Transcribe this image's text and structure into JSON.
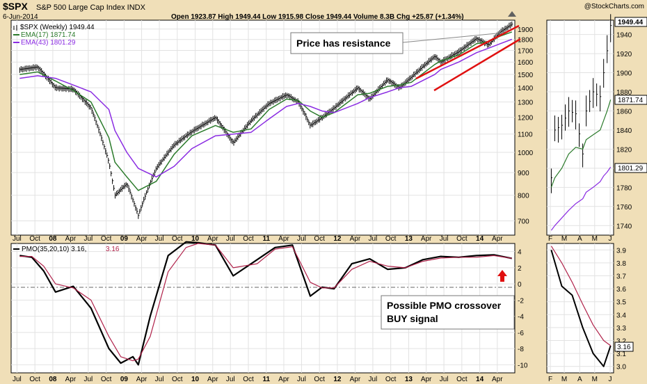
{
  "header": {
    "symbol": "$SPX",
    "name": "S&P 500 Large Cap Index INDX",
    "date": "6-Jun-2014",
    "brand": "@StockCharts.com",
    "ohlc": "Open 1923.87   High 1949.44   Low 1915.98   Close 1949.44   Volume 8.3B   Chg +25.87 (+1.34%)"
  },
  "legend": {
    "price": "$SPX (Weekly) 1949.44",
    "ema17": "EMA(17) 1871.74",
    "ema43": "EMA(43) 1801.29",
    "pmo_label": "PMO(35,20,10) 3.16,",
    "pmo_value": "3.16"
  },
  "annotations": {
    "resistance": "Price has resistance",
    "pmo_line1": "Possible PMO crossover",
    "pmo_line2": "BUY signal"
  },
  "colors": {
    "background": "#f0dfb8",
    "panel": "#ffffff",
    "price": "#000000",
    "ema17": "#2a7a2a",
    "ema43": "#8a2be2",
    "pmo": "#000000",
    "pmo_signal": "#b0224a",
    "trendline": "#e01010",
    "arrow": "#e01010"
  },
  "chart_data": [
    {
      "type": "line",
      "panel": "main-price",
      "scale": "log",
      "ylim": [
        650,
        1990
      ],
      "y_ticks": [
        700,
        800,
        900,
        1000,
        1100,
        1200,
        1300,
        1400,
        1500,
        1600,
        1700,
        1800,
        1900
      ],
      "x_ticks": [
        "Jul",
        "Oct",
        "08",
        "Apr",
        "Jul",
        "Oct",
        "09",
        "Apr",
        "Jul",
        "Oct",
        "10",
        "Apr",
        "Jul",
        "Oct",
        "11",
        "Apr",
        "Jul",
        "Oct",
        "12",
        "Apr",
        "Jul",
        "Oct",
        "13",
        "Apr",
        "Jul",
        "Oct",
        "14",
        "Apr"
      ],
      "x": [
        "2007-07",
        "2007-10",
        "2008-01",
        "2008-04",
        "2008-07",
        "2008-10",
        "2008-11",
        "2009-01",
        "2009-03",
        "2009-06",
        "2009-09",
        "2009-12",
        "2010-04",
        "2010-07",
        "2010-10",
        "2011-01",
        "2011-04",
        "2011-06",
        "2011-08",
        "2011-10",
        "2011-12",
        "2012-04",
        "2012-06",
        "2012-09",
        "2012-11",
        "2013-01",
        "2013-05",
        "2013-06",
        "2013-09",
        "2013-12",
        "2014-02",
        "2014-04",
        "2014-06"
      ],
      "series": [
        {
          "name": "$SPX (Weekly)",
          "values": [
            1540,
            1560,
            1400,
            1390,
            1260,
            950,
            800,
            850,
            720,
            920,
            1040,
            1115,
            1200,
            1050,
            1180,
            1290,
            1350,
            1300,
            1150,
            1200,
            1260,
            1400,
            1320,
            1460,
            1400,
            1480,
            1650,
            1600,
            1690,
            1810,
            1750,
            1870,
            1949.44
          ]
        },
        {
          "name": "EMA(17)",
          "values": [
            1500,
            1520,
            1450,
            1380,
            1300,
            1080,
            950,
            880,
            820,
            860,
            990,
            1090,
            1150,
            1110,
            1130,
            1250,
            1320,
            1310,
            1240,
            1200,
            1230,
            1350,
            1360,
            1410,
            1420,
            1440,
            1580,
            1610,
            1660,
            1760,
            1780,
            1830,
            1871.74
          ]
        },
        {
          "name": "EMA(43)",
          "values": [
            1470,
            1490,
            1470,
            1420,
            1370,
            1250,
            1120,
            1000,
            920,
            880,
            930,
            1020,
            1090,
            1100,
            1110,
            1190,
            1270,
            1290,
            1270,
            1240,
            1230,
            1290,
            1330,
            1370,
            1400,
            1410,
            1500,
            1540,
            1600,
            1680,
            1720,
            1760,
            1801.29
          ]
        }
      ],
      "annotation": "Price has resistance"
    },
    {
      "type": "line",
      "panel": "zoom-price",
      "ylim": [
        1730,
        1955
      ],
      "y_ticks": [
        1740,
        1760,
        1780,
        1800,
        1820,
        1840,
        1860,
        1880,
        1900,
        1920,
        1940
      ],
      "x_ticks": [
        "F",
        "M",
        "A",
        "M",
        "J"
      ],
      "x": [
        "2014-02-03",
        "2014-02-10",
        "2014-02-24",
        "2014-03-10",
        "2014-03-24",
        "2014-04-07",
        "2014-04-14",
        "2014-04-28",
        "2014-05-12",
        "2014-05-19",
        "2014-05-26",
        "2014-06-02"
      ],
      "series": [
        {
          "name": "$SPX (Weekly)",
          "values": [
            1790,
            1840,
            1845,
            1860,
            1857,
            1815,
            1860,
            1880,
            1875,
            1900,
            1923,
            1949.44
          ]
        },
        {
          "name": "EMA(17)",
          "values": [
            1780,
            1790,
            1800,
            1815,
            1822,
            1820,
            1830,
            1835,
            1840,
            1850,
            1860,
            1871.74
          ]
        },
        {
          "name": "EMA(43)",
          "values": [
            1735,
            1740,
            1748,
            1756,
            1763,
            1768,
            1775,
            1780,
            1786,
            1792,
            1796,
            1801.29
          ]
        }
      ]
    },
    {
      "type": "line",
      "panel": "pmo",
      "ylim": [
        -11,
        5
      ],
      "y_ticks": [
        4,
        2,
        0,
        -2,
        -4,
        -6,
        -8,
        -10
      ],
      "x_ticks": [
        "Jul",
        "Oct",
        "08",
        "Apr",
        "Jul",
        "Oct",
        "09",
        "Apr",
        "Jul",
        "Oct",
        "10",
        "Apr",
        "Jul",
        "Oct",
        "11",
        "Apr",
        "Jul",
        "Oct",
        "12",
        "Apr",
        "Jul",
        "Oct",
        "13",
        "Apr",
        "Jul",
        "Oct",
        "14",
        "Apr"
      ],
      "x": [
        "2007-07",
        "2007-09",
        "2007-11",
        "2008-01",
        "2008-04",
        "2008-07",
        "2008-10",
        "2008-12",
        "2009-02",
        "2009-03",
        "2009-05",
        "2009-08",
        "2009-11",
        "2010-01",
        "2010-04",
        "2010-07",
        "2010-11",
        "2011-02",
        "2011-05",
        "2011-08",
        "2011-10",
        "2011-12",
        "2012-03",
        "2012-06",
        "2012-09",
        "2012-12",
        "2013-03",
        "2013-06",
        "2013-09",
        "2013-12",
        "2014-03",
        "2014-06"
      ],
      "series": [
        {
          "name": "PMO",
          "values": [
            3.5,
            3.3,
            1.6,
            -1.0,
            -0.3,
            -3.0,
            -8.0,
            -9.8,
            -9.0,
            -10.0,
            -4.0,
            3.5,
            5.2,
            5.1,
            4.8,
            1.0,
            3.0,
            4.5,
            4.8,
            -1.5,
            -0.4,
            -0.6,
            2.5,
            3.1,
            1.8,
            2.0,
            3.0,
            3.4,
            3.3,
            3.5,
            3.6,
            3.16
          ]
        },
        {
          "name": "Signal",
          "values": [
            3.4,
            3.4,
            2.2,
            0.0,
            -0.5,
            -2.0,
            -6.5,
            -9.0,
            -9.5,
            -9.3,
            -6.5,
            1.5,
            4.5,
            5.0,
            4.8,
            2.0,
            2.5,
            4.3,
            4.6,
            0.2,
            -0.5,
            -0.5,
            1.8,
            2.8,
            2.2,
            2.0,
            2.8,
            3.2,
            3.3,
            3.3,
            3.5,
            3.16
          ]
        }
      ],
      "annotation": "Possible PMO crossover BUY signal"
    },
    {
      "type": "line",
      "panel": "zoom-pmo",
      "ylim": [
        2.95,
        3.95
      ],
      "y_ticks": [
        3.9,
        3.8,
        3.7,
        3.6,
        3.5,
        3.4,
        3.3,
        3.2,
        3.1,
        3.0
      ],
      "x_ticks": [
        "F",
        "M",
        "A",
        "M",
        "J"
      ],
      "x": [
        "2014-02-03",
        "2014-02-24",
        "2014-03-17",
        "2014-04-07",
        "2014-04-28",
        "2014-05-19",
        "2014-06-02"
      ],
      "series": [
        {
          "name": "PMO",
          "values": [
            3.9,
            3.62,
            3.55,
            3.3,
            3.1,
            3.0,
            3.16
          ]
        },
        {
          "name": "Signal",
          "values": [
            3.93,
            3.8,
            3.65,
            3.48,
            3.32,
            3.2,
            3.16
          ]
        }
      ]
    }
  ]
}
